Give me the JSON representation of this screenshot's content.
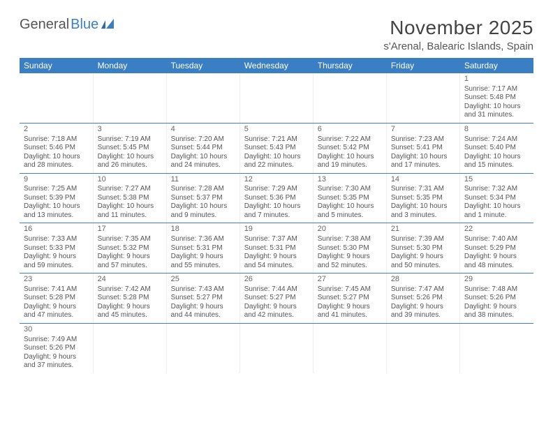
{
  "logo": {
    "general": "General",
    "blue": "Blue"
  },
  "title": "November 2025",
  "location": "s'Arenal, Balearic Islands, Spain",
  "colors": {
    "header_bg": "#3a7fc4",
    "header_text": "#ffffff",
    "rule": "#3a7fc4",
    "text": "#555555"
  },
  "day_headers": [
    "Sunday",
    "Monday",
    "Tuesday",
    "Wednesday",
    "Thursday",
    "Friday",
    "Saturday"
  ],
  "weeks": [
    [
      null,
      null,
      null,
      null,
      null,
      null,
      {
        "n": "1",
        "sr": "Sunrise: 7:17 AM",
        "ss": "Sunset: 5:48 PM",
        "dl": "Daylight: 10 hours and 31 minutes."
      }
    ],
    [
      {
        "n": "2",
        "sr": "Sunrise: 7:18 AM",
        "ss": "Sunset: 5:46 PM",
        "dl": "Daylight: 10 hours and 28 minutes."
      },
      {
        "n": "3",
        "sr": "Sunrise: 7:19 AM",
        "ss": "Sunset: 5:45 PM",
        "dl": "Daylight: 10 hours and 26 minutes."
      },
      {
        "n": "4",
        "sr": "Sunrise: 7:20 AM",
        "ss": "Sunset: 5:44 PM",
        "dl": "Daylight: 10 hours and 24 minutes."
      },
      {
        "n": "5",
        "sr": "Sunrise: 7:21 AM",
        "ss": "Sunset: 5:43 PM",
        "dl": "Daylight: 10 hours and 22 minutes."
      },
      {
        "n": "6",
        "sr": "Sunrise: 7:22 AM",
        "ss": "Sunset: 5:42 PM",
        "dl": "Daylight: 10 hours and 19 minutes."
      },
      {
        "n": "7",
        "sr": "Sunrise: 7:23 AM",
        "ss": "Sunset: 5:41 PM",
        "dl": "Daylight: 10 hours and 17 minutes."
      },
      {
        "n": "8",
        "sr": "Sunrise: 7:24 AM",
        "ss": "Sunset: 5:40 PM",
        "dl": "Daylight: 10 hours and 15 minutes."
      }
    ],
    [
      {
        "n": "9",
        "sr": "Sunrise: 7:25 AM",
        "ss": "Sunset: 5:39 PM",
        "dl": "Daylight: 10 hours and 13 minutes."
      },
      {
        "n": "10",
        "sr": "Sunrise: 7:27 AM",
        "ss": "Sunset: 5:38 PM",
        "dl": "Daylight: 10 hours and 11 minutes."
      },
      {
        "n": "11",
        "sr": "Sunrise: 7:28 AM",
        "ss": "Sunset: 5:37 PM",
        "dl": "Daylight: 10 hours and 9 minutes."
      },
      {
        "n": "12",
        "sr": "Sunrise: 7:29 AM",
        "ss": "Sunset: 5:36 PM",
        "dl": "Daylight: 10 hours and 7 minutes."
      },
      {
        "n": "13",
        "sr": "Sunrise: 7:30 AM",
        "ss": "Sunset: 5:35 PM",
        "dl": "Daylight: 10 hours and 5 minutes."
      },
      {
        "n": "14",
        "sr": "Sunrise: 7:31 AM",
        "ss": "Sunset: 5:35 PM",
        "dl": "Daylight: 10 hours and 3 minutes."
      },
      {
        "n": "15",
        "sr": "Sunrise: 7:32 AM",
        "ss": "Sunset: 5:34 PM",
        "dl": "Daylight: 10 hours and 1 minute."
      }
    ],
    [
      {
        "n": "16",
        "sr": "Sunrise: 7:33 AM",
        "ss": "Sunset: 5:33 PM",
        "dl": "Daylight: 9 hours and 59 minutes."
      },
      {
        "n": "17",
        "sr": "Sunrise: 7:35 AM",
        "ss": "Sunset: 5:32 PM",
        "dl": "Daylight: 9 hours and 57 minutes."
      },
      {
        "n": "18",
        "sr": "Sunrise: 7:36 AM",
        "ss": "Sunset: 5:31 PM",
        "dl": "Daylight: 9 hours and 55 minutes."
      },
      {
        "n": "19",
        "sr": "Sunrise: 7:37 AM",
        "ss": "Sunset: 5:31 PM",
        "dl": "Daylight: 9 hours and 54 minutes."
      },
      {
        "n": "20",
        "sr": "Sunrise: 7:38 AM",
        "ss": "Sunset: 5:30 PM",
        "dl": "Daylight: 9 hours and 52 minutes."
      },
      {
        "n": "21",
        "sr": "Sunrise: 7:39 AM",
        "ss": "Sunset: 5:30 PM",
        "dl": "Daylight: 9 hours and 50 minutes."
      },
      {
        "n": "22",
        "sr": "Sunrise: 7:40 AM",
        "ss": "Sunset: 5:29 PM",
        "dl": "Daylight: 9 hours and 48 minutes."
      }
    ],
    [
      {
        "n": "23",
        "sr": "Sunrise: 7:41 AM",
        "ss": "Sunset: 5:28 PM",
        "dl": "Daylight: 9 hours and 47 minutes."
      },
      {
        "n": "24",
        "sr": "Sunrise: 7:42 AM",
        "ss": "Sunset: 5:28 PM",
        "dl": "Daylight: 9 hours and 45 minutes."
      },
      {
        "n": "25",
        "sr": "Sunrise: 7:43 AM",
        "ss": "Sunset: 5:27 PM",
        "dl": "Daylight: 9 hours and 44 minutes."
      },
      {
        "n": "26",
        "sr": "Sunrise: 7:44 AM",
        "ss": "Sunset: 5:27 PM",
        "dl": "Daylight: 9 hours and 42 minutes."
      },
      {
        "n": "27",
        "sr": "Sunrise: 7:45 AM",
        "ss": "Sunset: 5:27 PM",
        "dl": "Daylight: 9 hours and 41 minutes."
      },
      {
        "n": "28",
        "sr": "Sunrise: 7:47 AM",
        "ss": "Sunset: 5:26 PM",
        "dl": "Daylight: 9 hours and 39 minutes."
      },
      {
        "n": "29",
        "sr": "Sunrise: 7:48 AM",
        "ss": "Sunset: 5:26 PM",
        "dl": "Daylight: 9 hours and 38 minutes."
      }
    ],
    [
      {
        "n": "30",
        "sr": "Sunrise: 7:49 AM",
        "ss": "Sunset: 5:26 PM",
        "dl": "Daylight: 9 hours and 37 minutes."
      },
      null,
      null,
      null,
      null,
      null,
      null
    ]
  ]
}
